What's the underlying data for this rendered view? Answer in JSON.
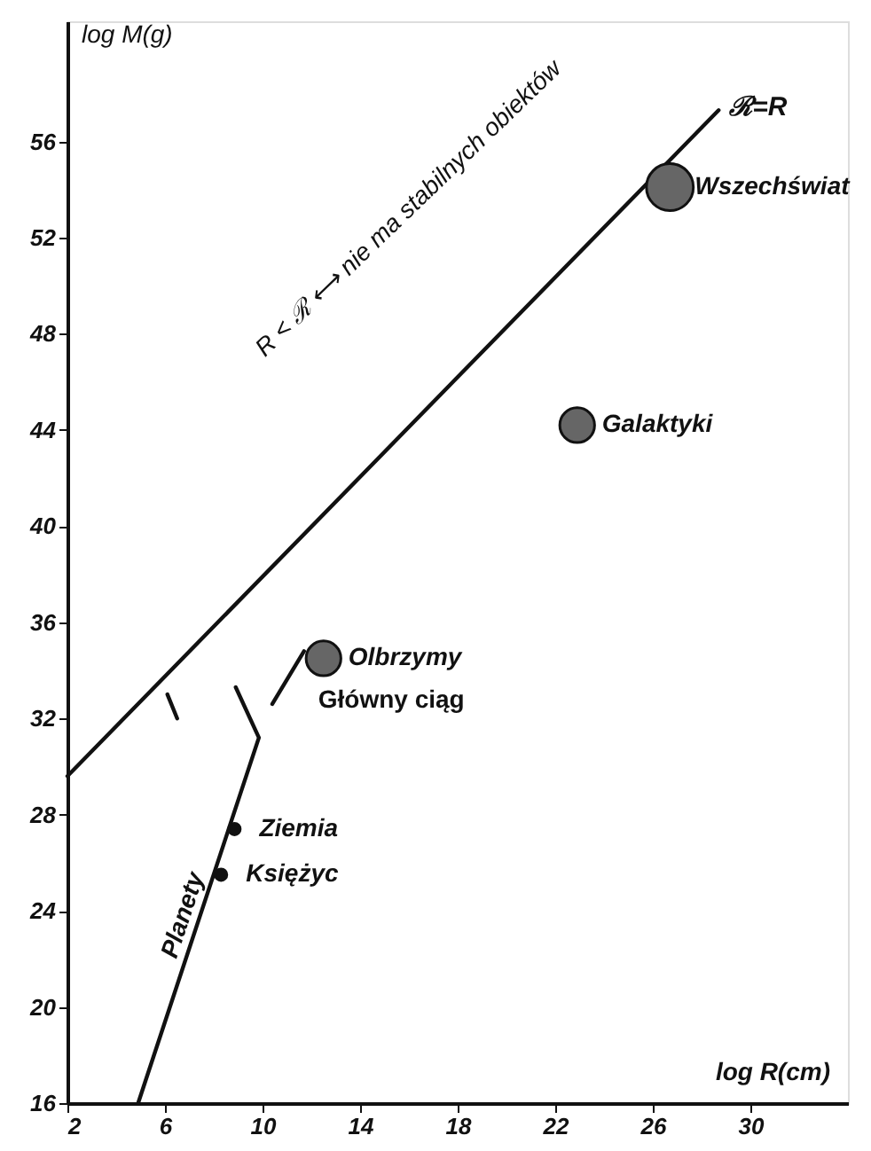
{
  "chart_data": {
    "type": "line",
    "xlabel": "log R(cm)",
    "ylabel": "log M(g)",
    "xlim": [
      2,
      34
    ],
    "ylim": [
      16,
      61
    ],
    "xticks": [
      2,
      6,
      10,
      14,
      18,
      22,
      26,
      30
    ],
    "yticks": [
      16,
      20,
      24,
      28,
      32,
      36,
      40,
      44,
      48,
      52,
      56
    ],
    "grid": false,
    "annotations": [
      "R < ℛ ⟷ nie ma stabilnych obiektów",
      {
        "text": "Wszechświat",
        "x": 26.7,
        "y": 54.1
      },
      {
        "text": "Galaktyki",
        "x": 22.9,
        "y": 44.2
      },
      {
        "text": "Olbrzymy",
        "x": 12.5,
        "y": 34.5
      },
      {
        "text": "Ziemia",
        "x": 8.85,
        "y": 27.4
      },
      {
        "text": "Księżyc",
        "x": 8.3,
        "y": 25.5
      }
    ],
    "series": [
      {
        "name": "ℛ=R",
        "color": "#111111",
        "x": [
          2,
          28.7
        ],
        "values": [
          29.6,
          57.3
        ]
      },
      {
        "name": "Planety",
        "color": "#111111",
        "x": [
          4.9,
          9.85,
          8.9
        ],
        "values": [
          16,
          31.2,
          33.3
        ]
      },
      {
        "name": "Główny ciąg",
        "color": "#111111",
        "x": [
          6.1,
          6.5,
          8.5,
          10.4,
          11.7
        ],
        "values": [
          33.0,
          32.0,
          null,
          32.6,
          34.8
        ]
      },
      {
        "type": "bubble",
        "x": [
          26.7,
          22.9,
          12.5,
          8.85,
          8.3
        ],
        "values": [
          54.1,
          44.2,
          34.5,
          27.4,
          25.5
        ],
        "sizes": [
          1,
          0.55,
          0.55,
          0.06,
          0.06
        ],
        "colors": [
          "#666666",
          "#666666",
          "#666666",
          "#111111",
          "#111111"
        ]
      }
    ]
  }
}
